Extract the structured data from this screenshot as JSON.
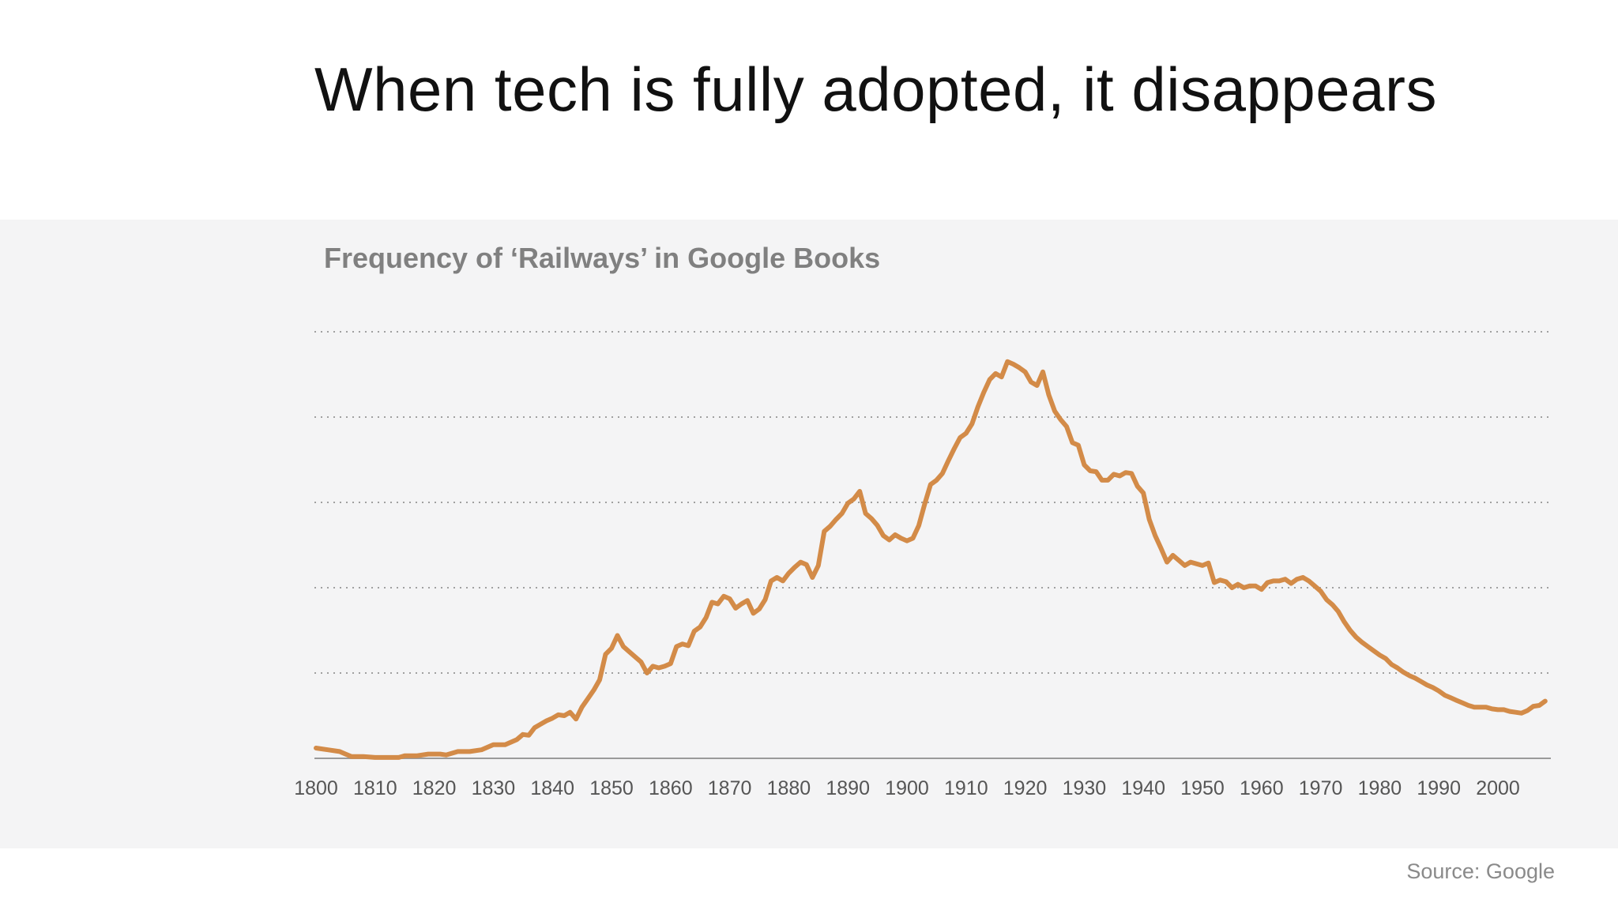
{
  "slide": {
    "title": "When tech is fully adopted, it disappears",
    "source": "Source: Google"
  },
  "colors": {
    "line": "#D38B48",
    "panel_background": "#F4F4F5",
    "gridline": "#A0A0A0",
    "axis": "#9A9A9A"
  },
  "chart_data": {
    "type": "line",
    "title": "Frequency of ‘Railways’ in Google Books",
    "xlabel": "",
    "ylabel": "",
    "grid": true,
    "gridline_style": "dotted horizontal",
    "xlim": [
      1800,
      2008
    ],
    "ylim": [
      0,
      5
    ],
    "x_ticks": [
      "1800",
      "1810",
      "1820",
      "1830",
      "1840",
      "1850",
      "1860",
      "1870",
      "1880",
      "1890",
      "1900",
      "1910",
      "1920",
      "1930",
      "1940",
      "1950",
      "1960",
      "1970",
      "1980",
      "1990",
      "2000"
    ],
    "y_tick_values": [
      0,
      1,
      2,
      3,
      4,
      5
    ],
    "y_tick_labels_shown": false,
    "series": [
      {
        "points": [
          [
            1800,
            0.12
          ],
          [
            1802,
            0.1
          ],
          [
            1804,
            0.08
          ],
          [
            1805,
            0.05
          ],
          [
            1806,
            0.02
          ],
          [
            1808,
            0.02
          ],
          [
            1810,
            0.01
          ],
          [
            1812,
            0.01
          ],
          [
            1814,
            0.01
          ],
          [
            1815,
            0.03
          ],
          [
            1817,
            0.03
          ],
          [
            1819,
            0.05
          ],
          [
            1821,
            0.05
          ],
          [
            1822,
            0.04
          ],
          [
            1824,
            0.08
          ],
          [
            1826,
            0.08
          ],
          [
            1828,
            0.1
          ],
          [
            1830,
            0.16
          ],
          [
            1832,
            0.16
          ],
          [
            1834,
            0.22
          ],
          [
            1835,
            0.28
          ],
          [
            1836,
            0.27
          ],
          [
            1837,
            0.36
          ],
          [
            1838,
            0.4
          ],
          [
            1839,
            0.44
          ],
          [
            1840,
            0.47
          ],
          [
            1841,
            0.51
          ],
          [
            1842,
            0.5
          ],
          [
            1843,
            0.54
          ],
          [
            1844,
            0.46
          ],
          [
            1845,
            0.6
          ],
          [
            1846,
            0.7
          ],
          [
            1847,
            0.8
          ],
          [
            1848,
            0.92
          ],
          [
            1849,
            1.22
          ],
          [
            1850,
            1.29
          ],
          [
            1851,
            1.44
          ],
          [
            1852,
            1.31
          ],
          [
            1853,
            1.25
          ],
          [
            1854,
            1.19
          ],
          [
            1855,
            1.13
          ],
          [
            1856,
            1.0
          ],
          [
            1857,
            1.08
          ],
          [
            1858,
            1.06
          ],
          [
            1859,
            1.08
          ],
          [
            1860,
            1.11
          ],
          [
            1861,
            1.31
          ],
          [
            1862,
            1.34
          ],
          [
            1863,
            1.32
          ],
          [
            1864,
            1.49
          ],
          [
            1865,
            1.54
          ],
          [
            1866,
            1.65
          ],
          [
            1867,
            1.83
          ],
          [
            1868,
            1.81
          ],
          [
            1869,
            1.9
          ],
          [
            1870,
            1.87
          ],
          [
            1871,
            1.76
          ],
          [
            1872,
            1.81
          ],
          [
            1873,
            1.85
          ],
          [
            1874,
            1.7
          ],
          [
            1875,
            1.75
          ],
          [
            1876,
            1.86
          ],
          [
            1877,
            2.08
          ],
          [
            1878,
            2.12
          ],
          [
            1879,
            2.08
          ],
          [
            1880,
            2.17
          ],
          [
            1881,
            2.24
          ],
          [
            1882,
            2.3
          ],
          [
            1883,
            2.27
          ],
          [
            1884,
            2.12
          ],
          [
            1885,
            2.26
          ],
          [
            1886,
            2.66
          ],
          [
            1887,
            2.72
          ],
          [
            1888,
            2.8
          ],
          [
            1889,
            2.87
          ],
          [
            1890,
            2.99
          ],
          [
            1891,
            3.04
          ],
          [
            1892,
            3.13
          ],
          [
            1893,
            2.87
          ],
          [
            1894,
            2.81
          ],
          [
            1895,
            2.73
          ],
          [
            1896,
            2.61
          ],
          [
            1897,
            2.56
          ],
          [
            1898,
            2.62
          ],
          [
            1899,
            2.58
          ],
          [
            1900,
            2.55
          ],
          [
            1901,
            2.58
          ],
          [
            1902,
            2.73
          ],
          [
            1903,
            2.98
          ],
          [
            1904,
            3.21
          ],
          [
            1905,
            3.26
          ],
          [
            1906,
            3.34
          ],
          [
            1907,
            3.49
          ],
          [
            1908,
            3.63
          ],
          [
            1909,
            3.76
          ],
          [
            1910,
            3.81
          ],
          [
            1911,
            3.92
          ],
          [
            1912,
            4.12
          ],
          [
            1913,
            4.29
          ],
          [
            1914,
            4.44
          ],
          [
            1915,
            4.51
          ],
          [
            1916,
            4.47
          ],
          [
            1917,
            4.65
          ],
          [
            1918,
            4.62
          ],
          [
            1919,
            4.58
          ],
          [
            1920,
            4.53
          ],
          [
            1921,
            4.41
          ],
          [
            1922,
            4.37
          ],
          [
            1923,
            4.53
          ],
          [
            1924,
            4.26
          ],
          [
            1925,
            4.07
          ],
          [
            1926,
            3.97
          ],
          [
            1927,
            3.89
          ],
          [
            1928,
            3.7
          ],
          [
            1929,
            3.67
          ],
          [
            1930,
            3.44
          ],
          [
            1931,
            3.37
          ],
          [
            1932,
            3.36
          ],
          [
            1933,
            3.26
          ],
          [
            1934,
            3.26
          ],
          [
            1935,
            3.33
          ],
          [
            1936,
            3.31
          ],
          [
            1937,
            3.35
          ],
          [
            1938,
            3.34
          ],
          [
            1939,
            3.19
          ],
          [
            1940,
            3.11
          ],
          [
            1941,
            2.8
          ],
          [
            1942,
            2.61
          ],
          [
            1943,
            2.46
          ],
          [
            1944,
            2.3
          ],
          [
            1945,
            2.38
          ],
          [
            1946,
            2.32
          ],
          [
            1947,
            2.26
          ],
          [
            1948,
            2.3
          ],
          [
            1949,
            2.28
          ],
          [
            1950,
            2.26
          ],
          [
            1951,
            2.29
          ],
          [
            1952,
            2.06
          ],
          [
            1953,
            2.09
          ],
          [
            1954,
            2.07
          ],
          [
            1955,
            2.0
          ],
          [
            1956,
            2.04
          ],
          [
            1957,
            2.0
          ],
          [
            1958,
            2.02
          ],
          [
            1959,
            2.02
          ],
          [
            1960,
            1.98
          ],
          [
            1961,
            2.06
          ],
          [
            1962,
            2.08
          ],
          [
            1963,
            2.08
          ],
          [
            1964,
            2.1
          ],
          [
            1965,
            2.05
          ],
          [
            1966,
            2.1
          ],
          [
            1967,
            2.12
          ],
          [
            1968,
            2.08
          ],
          [
            1969,
            2.02
          ],
          [
            1970,
            1.96
          ],
          [
            1971,
            1.86
          ],
          [
            1972,
            1.8
          ],
          [
            1973,
            1.72
          ],
          [
            1974,
            1.6
          ],
          [
            1975,
            1.5
          ],
          [
            1976,
            1.42
          ],
          [
            1977,
            1.36
          ],
          [
            1978,
            1.31
          ],
          [
            1979,
            1.26
          ],
          [
            1980,
            1.21
          ],
          [
            1981,
            1.17
          ],
          [
            1982,
            1.1
          ],
          [
            1983,
            1.06
          ],
          [
            1984,
            1.01
          ],
          [
            1985,
            0.97
          ],
          [
            1986,
            0.94
          ],
          [
            1987,
            0.9
          ],
          [
            1988,
            0.86
          ],
          [
            1989,
            0.83
          ],
          [
            1990,
            0.79
          ],
          [
            1991,
            0.74
          ],
          [
            1992,
            0.71
          ],
          [
            1993,
            0.68
          ],
          [
            1994,
            0.65
          ],
          [
            1995,
            0.62
          ],
          [
            1996,
            0.6
          ],
          [
            1997,
            0.6
          ],
          [
            1998,
            0.6
          ],
          [
            1999,
            0.58
          ],
          [
            2000,
            0.57
          ],
          [
            2001,
            0.57
          ],
          [
            2002,
            0.55
          ],
          [
            2003,
            0.54
          ],
          [
            2004,
            0.53
          ],
          [
            2005,
            0.56
          ],
          [
            2006,
            0.61
          ],
          [
            2007,
            0.62
          ],
          [
            2008,
            0.67
          ]
        ]
      }
    ]
  }
}
